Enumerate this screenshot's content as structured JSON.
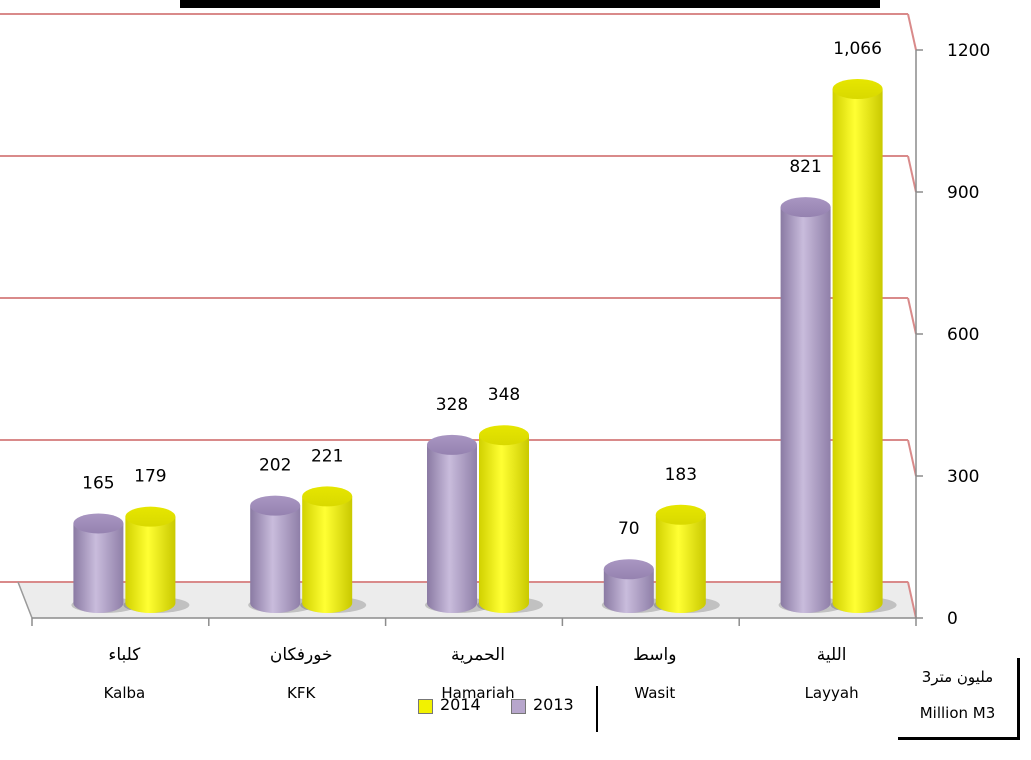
{
  "unit": {
    "arabic": "مليون متر3",
    "english": "Million M3"
  },
  "legend": {
    "items": [
      {
        "label": "2014",
        "color": "#f2f200"
      },
      {
        "label": "2013",
        "color": "#b7a6cc"
      }
    ]
  },
  "chart_data": {
    "type": "bar",
    "categories": [
      "Kalba",
      "KFK",
      "Hamariah",
      "Wasit",
      "Layyah"
    ],
    "categories_ar": [
      "كلباء",
      "خورفكان",
      "الحمرية",
      "واسط",
      "اللية"
    ],
    "series": [
      {
        "name": "2013",
        "values": [
          165,
          202,
          328,
          70,
          821
        ],
        "color": "#b7a6cc",
        "labels": [
          "165",
          "202",
          "328",
          "70",
          "821"
        ]
      },
      {
        "name": "2014",
        "values": [
          179,
          221,
          348,
          183,
          1066
        ],
        "color": "#f2f200",
        "labels": [
          "179",
          "221",
          "348",
          "183",
          "1,066"
        ]
      }
    ],
    "ylim": [
      0,
      1200
    ],
    "yticks": [
      0,
      300,
      600,
      900,
      1200
    ],
    "grid_color": "#d98a8a",
    "axis_position": "right",
    "legend_position": "bottom",
    "style": "3d-cylinder"
  }
}
